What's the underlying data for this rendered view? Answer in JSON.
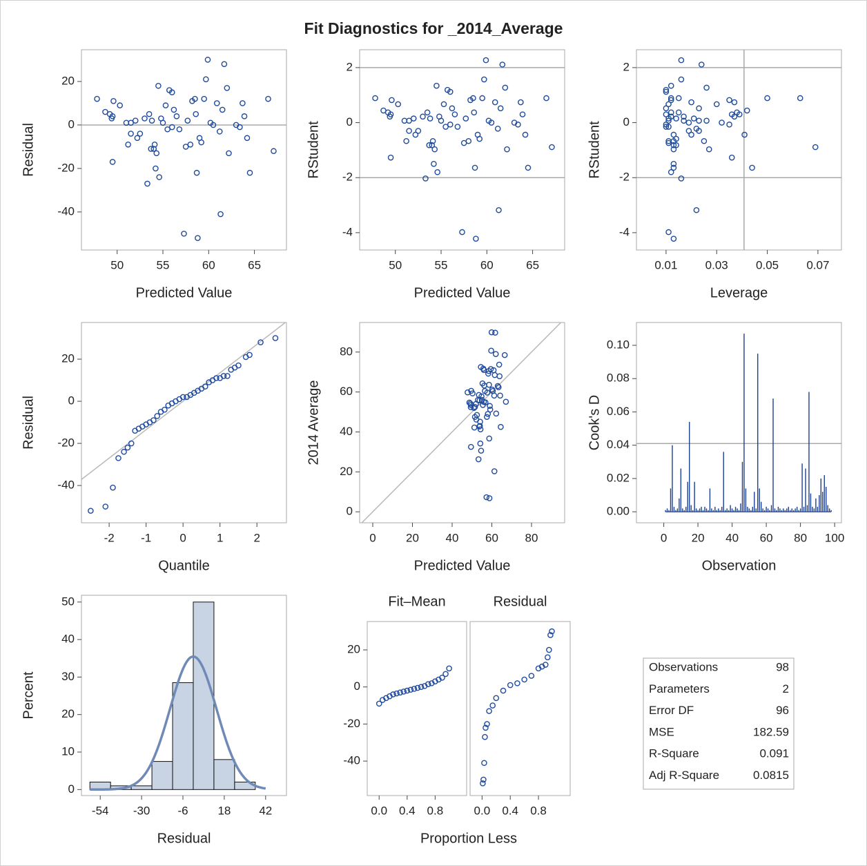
{
  "title": "Fit Diagnostics for _2014_Average",
  "chart_data": [
    {
      "type": "scatter",
      "xlabel": "Predicted Value",
      "ylabel": "Residual",
      "color": "#1f4b9c",
      "x": [
        47.8,
        48.7,
        49.2,
        49.4,
        49.5,
        49.6,
        49.5,
        50.3,
        51,
        51.2,
        51.5,
        51.5,
        52,
        52.2,
        52.5,
        53,
        53.3,
        53.5,
        53.7,
        53.8,
        54,
        54.1,
        54.2,
        54.3,
        54.5,
        54.6,
        54.8,
        55,
        55.3,
        55.5,
        55.7,
        56,
        56,
        56.2,
        56.5,
        56.8,
        57.3,
        57.5,
        57.7,
        58,
        58.2,
        58.5,
        58.6,
        58.7,
        58.8,
        59,
        59.2,
        59.5,
        59.7,
        59.9,
        60.2,
        60.5,
        60.9,
        61.2,
        61.3,
        61.5,
        61.7,
        62,
        62.2,
        63,
        63.4,
        63.7,
        63.9,
        64.2,
        64.5,
        66.5,
        67.1
      ],
      "y": [
        12,
        6,
        5,
        3,
        4,
        11,
        -17,
        9,
        1,
        -9,
        1,
        -4,
        2,
        -6,
        -4,
        3,
        -27,
        5,
        -11,
        2,
        -11,
        -9,
        -20,
        -13,
        18,
        -24,
        3,
        1,
        9,
        -2,
        16,
        15,
        -1,
        7,
        4,
        -2,
        -50,
        -10,
        2,
        -9,
        11,
        12,
        5,
        -22,
        -52,
        -6,
        -8,
        12,
        21,
        30,
        1,
        0,
        10,
        -3,
        -41,
        7,
        28,
        17,
        -13,
        0,
        -1,
        10,
        4,
        -6,
        -22,
        12,
        -12
      ],
      "xlim": [
        46.1,
        68.5
      ],
      "xticks": [
        50,
        55,
        60,
        65
      ],
      "ylim": [
        -57.5,
        34.6
      ],
      "yticks": [
        -40,
        -20,
        0,
        20
      ],
      "hlines": [
        0
      ]
    },
    {
      "type": "scatter",
      "xlabel": "Predicted Value",
      "ylabel": "RStudent",
      "color": "#1f4b9c",
      "x": [
        47.8,
        48.7,
        49.2,
        49.4,
        49.5,
        49.6,
        49.5,
        50.3,
        51,
        51.2,
        51.5,
        51.5,
        52,
        52.2,
        52.5,
        53,
        53.3,
        53.5,
        53.7,
        53.8,
        54,
        54.1,
        54.2,
        54.3,
        54.5,
        54.6,
        54.8,
        55,
        55.3,
        55.5,
        55.7,
        56,
        56,
        56.2,
        56.5,
        56.8,
        57.3,
        57.5,
        57.7,
        58,
        58.2,
        58.5,
        58.6,
        58.7,
        58.8,
        59,
        59.2,
        59.5,
        59.7,
        59.9,
        60.2,
        60.5,
        60.9,
        61.2,
        61.3,
        61.5,
        61.7,
        62,
        62.2,
        63,
        63.4,
        63.7,
        63.9,
        64.2,
        64.5,
        66.5,
        67.1
      ],
      "y": [
        0.89,
        0.44,
        0.37,
        0.22,
        0.3,
        0.82,
        -1.27,
        0.67,
        0.07,
        -0.67,
        0.07,
        -0.3,
        0.15,
        -0.44,
        -0.3,
        0.22,
        -2.03,
        0.37,
        -0.82,
        0.15,
        -0.82,
        -0.67,
        -1.5,
        -0.97,
        1.34,
        -1.8,
        0.22,
        0.07,
        0.67,
        -0.15,
        1.19,
        1.12,
        -0.07,
        0.52,
        0.3,
        -0.15,
        -3.98,
        -0.74,
        0.15,
        -0.67,
        0.82,
        0.89,
        0.37,
        -1.64,
        -4.22,
        -0.44,
        -0.59,
        0.89,
        1.57,
        2.27,
        0.07,
        0,
        0.74,
        -0.22,
        -3.18,
        0.52,
        2.11,
        1.27,
        -0.97,
        0,
        -0.07,
        0.74,
        0.3,
        -0.44,
        -1.64,
        0.89,
        -0.89
      ],
      "xlim": [
        46.1,
        68.5
      ],
      "xticks": [
        50,
        55,
        60,
        65
      ],
      "ylim": [
        -4.63,
        2.65
      ],
      "yticks": [
        -4,
        -2,
        0,
        2
      ],
      "hlines": [
        -2,
        2
      ]
    },
    {
      "type": "scatter",
      "xlabel": "Leverage",
      "ylabel": "RStudent",
      "color": "#1f4b9c",
      "x": [
        0.05,
        0.042,
        0.038,
        0.037,
        0.036,
        0.035,
        0.036,
        0.03,
        0.026,
        0.025,
        0.023,
        0.023,
        0.021,
        0.02,
        0.019,
        0.017,
        0.016,
        0.015,
        0.014,
        0.014,
        0.013,
        0.013,
        0.013,
        0.013,
        0.012,
        0.012,
        0.012,
        0.011,
        0.011,
        0.011,
        0.01,
        0.01,
        0.01,
        0.01,
        0.01,
        0.01,
        0.011,
        0.011,
        0.011,
        0.011,
        0.012,
        0.012,
        0.012,
        0.013,
        0.013,
        0.013,
        0.014,
        0.015,
        0.016,
        0.016,
        0.017,
        0.019,
        0.02,
        0.022,
        0.022,
        0.023,
        0.024,
        0.026,
        0.027,
        0.032,
        0.035,
        0.037,
        0.039,
        0.041,
        0.044,
        0.063,
        0.069
      ],
      "y": [
        0.89,
        0.44,
        0.37,
        0.22,
        0.3,
        0.82,
        -1.27,
        0.67,
        0.07,
        -0.67,
        0.07,
        -0.3,
        0.15,
        -0.44,
        -0.3,
        0.22,
        -2.03,
        0.37,
        -0.82,
        0.15,
        -0.82,
        -0.67,
        -1.5,
        -0.97,
        1.34,
        -1.8,
        0.22,
        0.07,
        0.67,
        -0.15,
        1.19,
        1.12,
        -0.07,
        0.52,
        0.3,
        -0.15,
        -3.98,
        -0.74,
        0.15,
        -0.67,
        0.82,
        0.89,
        0.37,
        -1.64,
        -4.22,
        -0.44,
        -0.59,
        0.89,
        1.57,
        2.27,
        0.07,
        0,
        0.74,
        -0.22,
        -3.18,
        0.52,
        2.11,
        1.27,
        -0.97,
        0,
        -0.07,
        0.74,
        0.3,
        -0.44,
        -1.64,
        0.89,
        -0.89
      ],
      "xlim": [
        -0.0017,
        0.0793
      ],
      "xticks": [
        0.01,
        0.03,
        0.05,
        0.07
      ],
      "ylim": [
        -4.63,
        2.65
      ],
      "yticks": [
        -4,
        -2,
        0,
        2
      ],
      "hlines": [
        -2,
        2
      ],
      "vlines": [
        0.0408
      ]
    },
    {
      "type": "scatter",
      "xlabel": "Quantile",
      "ylabel": "Residual",
      "color": "#1f4b9c",
      "x": [
        -2.5,
        -2.1,
        -1.9,
        -1.75,
        -1.6,
        -1.5,
        -1.4,
        -1.3,
        -1.2,
        -1.1,
        -1,
        -0.9,
        -0.8,
        -0.7,
        -0.6,
        -0.5,
        -0.4,
        -0.3,
        -0.2,
        -0.1,
        0,
        0.1,
        0.2,
        0.3,
        0.4,
        0.5,
        0.6,
        0.7,
        0.8,
        0.9,
        1,
        1.1,
        1.2,
        1.3,
        1.4,
        1.5,
        1.7,
        1.8,
        2.1,
        2.5
      ],
      "y": [
        -52,
        -50,
        -41,
        -27,
        -24,
        -22,
        -20,
        -14,
        -13,
        -12,
        -11,
        -10,
        -9,
        -7,
        -5,
        -4,
        -2,
        -1,
        0,
        1,
        2,
        2,
        3,
        4,
        5,
        6,
        7,
        9,
        10,
        11,
        11,
        12,
        12,
        15,
        16,
        17,
        21,
        22,
        28,
        30
      ],
      "xlim": [
        -2.75,
        2.8
      ],
      "xticks": [
        -2,
        -1,
        0,
        1,
        2
      ],
      "ylim": [
        -57.7,
        37.4
      ],
      "yticks": [
        -40,
        -20,
        0,
        20
      ],
      "diag_lines": [
        {
          "intercept": 0,
          "slope": 13.5
        }
      ]
    },
    {
      "type": "scatter",
      "xlabel": "Predicted Value",
      "ylabel": "2014 Average",
      "color": "#1f4b9c",
      "x": [
        47.8,
        48.7,
        49.2,
        49.4,
        49.5,
        49.6,
        49.5,
        50.3,
        51,
        51.2,
        51.5,
        51.5,
        52,
        52.2,
        52.5,
        53,
        53.3,
        53.5,
        53.7,
        53.8,
        54,
        54.1,
        54.2,
        54.3,
        54.5,
        54.6,
        54.8,
        55,
        55.3,
        55.5,
        55.7,
        56,
        56,
        56.2,
        56.5,
        56.8,
        57.3,
        57.5,
        57.7,
        58,
        58.2,
        58.5,
        58.6,
        58.7,
        58.8,
        59,
        59.2,
        59.5,
        59.7,
        59.9,
        60.2,
        60.5,
        60.9,
        61.2,
        61.3,
        61.5,
        61.7,
        62,
        62.2,
        63,
        63.4,
        63.7,
        63.9,
        64.2,
        64.5,
        66.5,
        67.1
      ],
      "y": [
        59.8,
        54.7,
        54.2,
        52.4,
        53.5,
        60.6,
        32.5,
        59.3,
        52,
        42.2,
        52.5,
        47.5,
        54,
        46.2,
        48.5,
        56,
        26.3,
        58.5,
        42.7,
        55.8,
        43,
        45.1,
        34.2,
        41.3,
        72.5,
        30.6,
        57.8,
        56,
        64.3,
        53.5,
        71.7,
        71,
        55,
        63.2,
        60.5,
        54.8,
        7.3,
        47.5,
        59.7,
        49,
        69.2,
        70.5,
        63.6,
        36.7,
        6.8,
        53,
        51.2,
        71.5,
        80.7,
        89.9,
        61.2,
        60.5,
        70.9,
        58.2,
        20.3,
        68.5,
        89.7,
        79,
        49.2,
        63,
        62.4,
        73.7,
        67.9,
        58.2,
        42.5,
        78.5,
        55.1
      ],
      "xlim": [
        -6.6,
        96.7
      ],
      "xticks": [
        0,
        20,
        40,
        60,
        80
      ],
      "ylim": [
        -5.5,
        94.8
      ],
      "yticks": [
        0,
        20,
        40,
        60,
        80
      ],
      "diag_lines": [
        {
          "intercept": 0,
          "slope": 1
        }
      ]
    },
    {
      "type": "needle",
      "xlabel": "Observation",
      "ylabel": "Cook's D",
      "color": "#1b3f8f",
      "x": [
        1,
        2,
        3,
        4,
        5,
        6,
        7,
        8,
        9,
        10,
        11,
        12,
        13,
        14,
        15,
        16,
        17,
        18,
        19,
        20,
        21,
        22,
        23,
        24,
        25,
        26,
        27,
        28,
        29,
        30,
        31,
        32,
        33,
        34,
        35,
        36,
        37,
        38,
        39,
        40,
        41,
        42,
        43,
        44,
        45,
        46,
        47,
        48,
        49,
        50,
        51,
        52,
        53,
        54,
        55,
        56,
        57,
        58,
        59,
        60,
        61,
        62,
        63,
        64,
        65,
        66,
        67,
        68,
        69,
        70,
        71,
        72,
        73,
        74,
        75,
        76,
        77,
        78,
        79,
        80,
        81,
        82,
        83,
        84,
        85,
        86,
        87,
        88,
        89,
        90,
        91,
        92,
        93,
        94,
        95,
        96,
        97,
        98
      ],
      "values": [
        0.001,
        0.002,
        0.001,
        0.014,
        0.04,
        0.003,
        0.001,
        0.002,
        0.008,
        0.026,
        0.002,
        0.001,
        0.003,
        0.018,
        0.054,
        0.004,
        0.001,
        0.018,
        0.002,
        0.001,
        0.002,
        0.003,
        0.001,
        0.003,
        0.002,
        0.001,
        0.014,
        0.002,
        0.001,
        0.003,
        0.001,
        0.002,
        0.001,
        0.003,
        0.036,
        0.001,
        0.002,
        0.001,
        0.004,
        0.002,
        0.001,
        0.003,
        0.002,
        0.001,
        0.005,
        0.03,
        0.107,
        0.014,
        0.003,
        0.002,
        0.001,
        0.003,
        0.012,
        0.002,
        0.095,
        0.014,
        0.006,
        0.002,
        0.001,
        0.003,
        0.002,
        0.001,
        0.004,
        0.068,
        0.002,
        0.001,
        0.003,
        0.002,
        0.001,
        0.002,
        0.001,
        0.002,
        0.003,
        0.001,
        0.002,
        0.001,
        0.002,
        0.003,
        0.001,
        0.002,
        0.029,
        0.003,
        0.026,
        0.004,
        0.072,
        0.011,
        0.003,
        0.002,
        0.008,
        0.003,
        0.01,
        0.02,
        0.012,
        0.022,
        0.015,
        0.004,
        0.002,
        0.001
      ],
      "xlim": [
        -16,
        104
      ],
      "xticks": [
        0,
        20,
        40,
        60,
        80,
        100
      ],
      "ylim": [
        -0.0066,
        0.1137
      ],
      "yticks": [
        {
          "value": 0,
          "label": "0.00"
        },
        {
          "value": 0.02,
          "label": "0.02"
        },
        {
          "value": 0.04,
          "label": "0.04"
        },
        {
          "value": 0.06,
          "label": "0.06"
        },
        {
          "value": 0.08,
          "label": "0.08"
        },
        {
          "value": 0.1,
          "label": "0.10"
        }
      ],
      "hlines": [
        0.041
      ]
    },
    {
      "type": "histogram",
      "xlabel": "Residual",
      "ylabel": "Percent",
      "color": "#c8d3e4",
      "curve_color": "#6f8ab6",
      "bins": [
        -60,
        -48,
        -36,
        -24,
        -12,
        0,
        12,
        24,
        36
      ],
      "values": [
        2,
        1,
        1,
        7.5,
        28.5,
        50,
        8,
        2
      ],
      "density_curve": {
        "mean": 0,
        "sd": 13.5
      },
      "xlim": [
        -64.9,
        54.1
      ],
      "xticks": [
        -54,
        -30,
        -6,
        18,
        42
      ],
      "ylim": [
        -1.6,
        51.8
      ],
      "yticks": [
        0,
        10,
        20,
        30,
        40,
        50
      ]
    },
    {
      "type": "spread",
      "xlabel": "Proportion Less",
      "color": "#1f4b9c",
      "xlim": [
        -0.17,
        1.25
      ],
      "xticks": [
        {
          "value": 0,
          "label": "0.0"
        },
        0.4,
        0.8
      ],
      "ylim": [
        -58.6,
        35.3
      ],
      "yticks": [
        -40,
        -20,
        0,
        20
      ],
      "panels": [
        {
          "title": "Fit–Mean",
          "x": [
            0,
            0.05,
            0.1,
            0.15,
            0.2,
            0.25,
            0.3,
            0.35,
            0.4,
            0.45,
            0.5,
            0.55,
            0.6,
            0.65,
            0.7,
            0.75,
            0.8,
            0.85,
            0.9,
            0.95,
            1
          ],
          "y": [
            -9,
            -7,
            -6,
            -5,
            -4,
            -3.5,
            -3,
            -2.5,
            -2,
            -1.5,
            -1,
            -0.5,
            0,
            0.5,
            1.5,
            2,
            3,
            4,
            5,
            7,
            10
          ]
        },
        {
          "title": "Residual",
          "x": [
            0.01,
            0.02,
            0.03,
            0.04,
            0.05,
            0.07,
            0.1,
            0.15,
            0.2,
            0.3,
            0.4,
            0.5,
            0.6,
            0.7,
            0.8,
            0.85,
            0.9,
            0.93,
            0.95,
            0.97,
            0.99
          ],
          "y": [
            -52,
            -50,
            -41,
            -27,
            -22,
            -20,
            -13,
            -10,
            -6,
            -2,
            1,
            2,
            4,
            6,
            10,
            11,
            12,
            16,
            20,
            28,
            30
          ]
        }
      ]
    }
  ],
  "fit_statistics": {
    "rows": [
      [
        "Observations",
        98
      ],
      [
        "Parameters",
        2
      ],
      [
        "Error DF",
        96
      ],
      [
        "MSE",
        182.59
      ],
      [
        "R-Square",
        0.091
      ],
      [
        "Adj R-Square",
        0.0815
      ]
    ]
  }
}
